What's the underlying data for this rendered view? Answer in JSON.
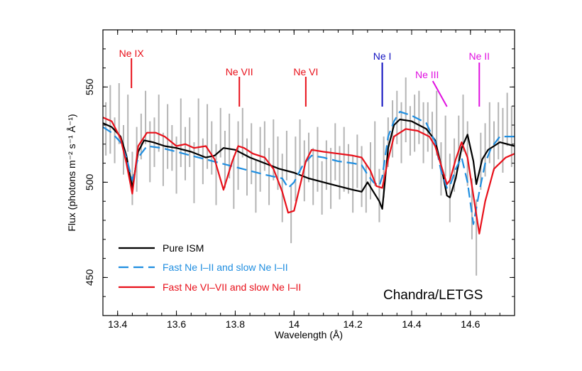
{
  "chart_data": {
    "type": "line",
    "title": "",
    "xlabel": "Wavelength (Å)",
    "ylabel": "Flux (photons m⁻² s⁻¹ Å⁻¹)",
    "xlim": [
      13.35,
      14.75
    ],
    "ylim": [
      430,
      580
    ],
    "x_ticks": [
      13.4,
      13.6,
      13.8,
      14.0,
      14.2,
      14.4,
      14.6
    ],
    "x_tick_labels": [
      "13.4",
      "13.6",
      "13.8",
      "14",
      "14.2",
      "14.4",
      "14.6"
    ],
    "y_ticks": [
      450,
      500,
      550
    ],
    "y_tick_labels": [
      "450",
      "500",
      "550"
    ],
    "grid": false,
    "legend_position": "bottom-left",
    "annotation": "Chandra/LETGS",
    "line_markers": [
      {
        "label": "Ne IX",
        "x": 13.447,
        "color": "#e8101a"
      },
      {
        "label": "Ne VII",
        "x": 13.814,
        "color": "#e8101a"
      },
      {
        "label": "Ne VI",
        "x": 14.04,
        "color": "#e8101a"
      },
      {
        "label": "Ne I",
        "x": 14.3,
        "color": "#1010c0"
      },
      {
        "label": "Ne III",
        "x": 14.52,
        "color": "#e010e0"
      },
      {
        "label": "Ne II",
        "x": 14.63,
        "color": "#e010e0"
      }
    ],
    "series": [
      {
        "name": "Pure ISM",
        "color": "#000000",
        "style": "solid",
        "x": [
          13.35,
          13.38,
          13.41,
          13.43,
          13.45,
          13.47,
          13.49,
          13.52,
          13.56,
          13.6,
          13.65,
          13.7,
          13.73,
          13.76,
          13.8,
          13.85,
          13.9,
          13.95,
          14.0,
          14.05,
          14.1,
          14.15,
          14.2,
          14.23,
          14.25,
          14.27,
          14.29,
          14.3,
          14.32,
          14.34,
          14.36,
          14.4,
          14.45,
          14.48,
          14.5,
          14.52,
          14.53,
          14.55,
          14.57,
          14.59,
          14.61,
          14.62,
          14.64,
          14.66,
          14.68,
          14.7,
          14.75
        ],
        "y": [
          531,
          529,
          524,
          514,
          497,
          516,
          522,
          521,
          519,
          518,
          516,
          513,
          514,
          518,
          517,
          513,
          510,
          507,
          505,
          502,
          500,
          498,
          496,
          495,
          500,
          495,
          490,
          486,
          518,
          530,
          533,
          532,
          528,
          522,
          509,
          493,
          492,
          502,
          518,
          525,
          511,
          499,
          512,
          517,
          519,
          521,
          519
        ]
      },
      {
        "name": "Fast Ne I–II and slow Ne I–II",
        "color": "#1f8ee0",
        "style": "dashed",
        "x": [
          13.35,
          13.38,
          13.41,
          13.43,
          13.45,
          13.47,
          13.5,
          13.55,
          13.6,
          13.65,
          13.7,
          13.75,
          13.8,
          13.85,
          13.9,
          13.93,
          13.96,
          13.98,
          14.0,
          14.03,
          14.06,
          14.1,
          14.15,
          14.2,
          14.23,
          14.25,
          14.27,
          14.29,
          14.3,
          14.32,
          14.34,
          14.36,
          14.4,
          14.45,
          14.48,
          14.5,
          14.52,
          14.53,
          14.55,
          14.57,
          14.59,
          14.61,
          14.63,
          14.65,
          14.67,
          14.7,
          14.75
        ],
        "y": [
          529,
          526,
          521,
          513,
          501,
          513,
          519,
          518,
          516,
          514,
          512,
          510,
          508,
          506,
          504,
          503,
          502,
          497,
          500,
          509,
          514,
          513,
          511,
          510,
          509,
          504,
          500,
          498,
          503,
          524,
          532,
          537,
          535,
          531,
          521,
          506,
          497,
          498,
          507,
          513,
          500,
          478,
          495,
          510,
          518,
          524,
          524
        ]
      },
      {
        "name": "Fast Ne VI–VII and slow Ne I–II",
        "color": "#e8101a",
        "style": "solid",
        "x": [
          13.35,
          13.38,
          13.41,
          13.43,
          13.45,
          13.47,
          13.5,
          13.53,
          13.56,
          13.6,
          13.63,
          13.66,
          13.7,
          13.73,
          13.76,
          13.79,
          13.81,
          13.83,
          13.86,
          13.9,
          13.93,
          13.96,
          13.98,
          14.0,
          14.02,
          14.04,
          14.06,
          14.1,
          14.15,
          14.2,
          14.23,
          14.26,
          14.28,
          14.3,
          14.32,
          14.34,
          14.38,
          14.42,
          14.46,
          14.48,
          14.5,
          14.52,
          14.53,
          14.55,
          14.57,
          14.59,
          14.61,
          14.63,
          14.65,
          14.68,
          14.72,
          14.75
        ],
        "y": [
          534,
          532,
          523,
          510,
          494,
          519,
          526,
          526,
          524,
          519,
          520,
          518,
          519,
          512,
          496,
          511,
          519,
          518,
          515,
          513,
          507,
          495,
          484,
          485,
          498,
          511,
          517,
          516,
          515,
          514,
          513,
          506,
          498,
          497,
          512,
          524,
          528,
          527,
          524,
          519,
          509,
          499,
          501,
          512,
          521,
          513,
          493,
          473,
          490,
          507,
          513,
          515
        ]
      }
    ],
    "data_errorbars": {
      "color": "#b4b4b4",
      "x": [
        13.36,
        13.375,
        13.39,
        13.405,
        13.42,
        13.435,
        13.45,
        13.465,
        13.48,
        13.495,
        13.51,
        13.525,
        13.54,
        13.555,
        13.57,
        13.585,
        13.6,
        13.615,
        13.63,
        13.645,
        13.66,
        13.675,
        13.69,
        13.705,
        13.72,
        13.735,
        13.75,
        13.765,
        13.78,
        13.795,
        13.81,
        13.825,
        13.84,
        13.855,
        13.87,
        13.885,
        13.9,
        13.915,
        13.93,
        13.945,
        13.96,
        13.975,
        13.99,
        14.005,
        14.02,
        14.035,
        14.05,
        14.065,
        14.08,
        14.095,
        14.11,
        14.125,
        14.14,
        14.155,
        14.17,
        14.185,
        14.2,
        14.215,
        14.23,
        14.245,
        14.26,
        14.275,
        14.29,
        14.305,
        14.32,
        14.335,
        14.35,
        14.365,
        14.38,
        14.395,
        14.41,
        14.425,
        14.44,
        14.455,
        14.47,
        14.485,
        14.5,
        14.515,
        14.53,
        14.545,
        14.56,
        14.575,
        14.59,
        14.605,
        14.62,
        14.635,
        14.65,
        14.665,
        14.68,
        14.695,
        14.71,
        14.725,
        14.74
      ],
      "y": [
        528,
        533,
        522,
        536,
        517,
        531,
        502,
        512,
        524,
        534,
        516,
        521,
        531,
        512,
        524,
        518,
        509,
        526,
        515,
        521,
        505,
        529,
        511,
        524,
        518,
        504,
        526,
        512,
        519,
        500,
        514,
        526,
        508,
        515,
        498,
        512,
        519,
        503,
        517,
        510,
        497,
        514,
        483,
        507,
        519,
        506,
        513,
        503,
        512,
        497,
        509,
        502,
        516,
        505,
        512,
        507,
        499,
        511,
        503,
        497,
        506,
        515,
        493,
        508,
        521,
        528,
        534,
        526,
        538,
        527,
        531,
        534,
        526,
        529,
        522,
        531,
        507,
        519,
        497,
        509,
        522,
        531,
        515,
        486,
        471,
        511,
        517,
        526,
        519,
        527,
        522,
        533,
        524
      ],
      "err": [
        14,
        18,
        12,
        16,
        13,
        15,
        14,
        17,
        12,
        14,
        16,
        13,
        15,
        14,
        17,
        12,
        15,
        18,
        14,
        13,
        16,
        15,
        12,
        17,
        14,
        16,
        13,
        15,
        17,
        14,
        18,
        13,
        15,
        16,
        14,
        17,
        13,
        15,
        16,
        14,
        18,
        13,
        15,
        17,
        14,
        16,
        13,
        15,
        17,
        14,
        13,
        16,
        15,
        14,
        17,
        13,
        15,
        14,
        16,
        13,
        15,
        17,
        14,
        16,
        13,
        15,
        14,
        16,
        17,
        13,
        15,
        14,
        16,
        13,
        15,
        17,
        14,
        16,
        18,
        14,
        13,
        15,
        17,
        16,
        20,
        15,
        14,
        16,
        13,
        15,
        17,
        14,
        16
      ]
    }
  }
}
